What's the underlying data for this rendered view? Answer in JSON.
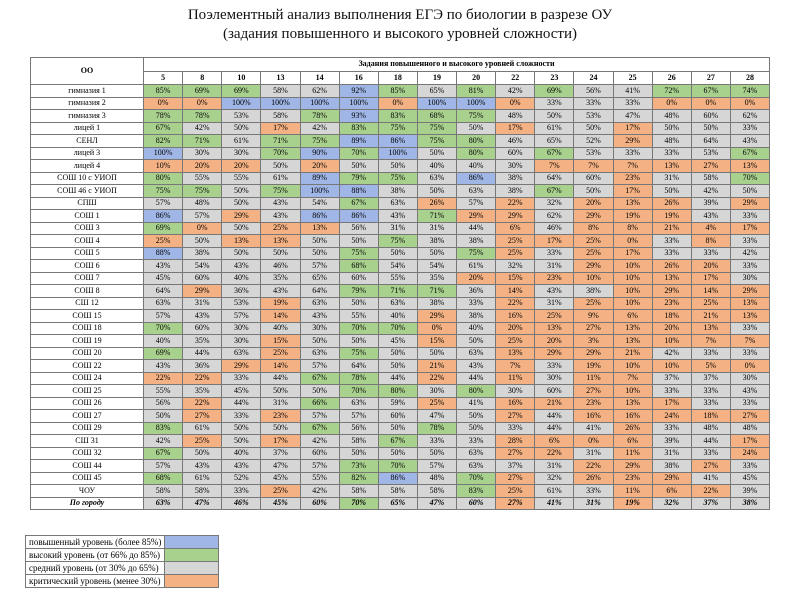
{
  "header": {
    "title": [
      "Поэлементный анализ выполнения ЕГЭ по биологии в разрезе ОУ",
      "(задания повышенного и высокого уровней сложности)"
    ]
  },
  "table": {
    "corner": "ОО",
    "group": "Задания повышенного и высокого уровней сложности",
    "columns": [
      "5",
      "8",
      "10",
      "13",
      "14",
      "16",
      "18",
      "19",
      "20",
      "22",
      "23",
      "24",
      "25",
      "26",
      "27",
      "28"
    ],
    "rows": [
      {
        "name": "гимназия 1",
        "cells": [
          "85%",
          "69%",
          "69%",
          "58%",
          "62%",
          "92%",
          "85%",
          "65%",
          "81%",
          "42%",
          "69%",
          "56%",
          "41%",
          "72%",
          "67%",
          "74%"
        ]
      },
      {
        "name": "гимназия 2",
        "cells": [
          "0%",
          "0%",
          "100%",
          "100%",
          "100%",
          "100%",
          "0%",
          "100%",
          "100%",
          "0%",
          "33%",
          "33%",
          "33%",
          "0%",
          "0%",
          "0%"
        ]
      },
      {
        "name": "гимназия 3",
        "cells": [
          "78%",
          "78%",
          "53%",
          "58%",
          "78%",
          "93%",
          "83%",
          "68%",
          "75%",
          "48%",
          "50%",
          "53%",
          "47%",
          "48%",
          "60%",
          "62%"
        ]
      },
      {
        "name": "лицей 1",
        "cells": [
          "67%",
          "42%",
          "50%",
          "17%",
          "42%",
          "83%",
          "75%",
          "75%",
          "50%",
          "17%",
          "61%",
          "50%",
          "17%",
          "50%",
          "50%",
          "33%"
        ]
      },
      {
        "name": "СЕНЛ",
        "cells": [
          "82%",
          "71%",
          "61%",
          "71%",
          "75%",
          "89%",
          "86%",
          "75%",
          "80%",
          "46%",
          "65%",
          "52%",
          "29%",
          "48%",
          "64%",
          "43%"
        ]
      },
      {
        "name": "лицей 3",
        "cells": [
          "100%",
          "30%",
          "30%",
          "70%",
          "90%",
          "70%",
          "100%",
          "50%",
          "80%",
          "60%",
          "67%",
          "53%",
          "33%",
          "33%",
          "53%",
          "67%"
        ]
      },
      {
        "name": "лицей 4",
        "cells": [
          "10%",
          "20%",
          "20%",
          "50%",
          "20%",
          "50%",
          "50%",
          "40%",
          "40%",
          "30%",
          "7%",
          "7%",
          "7%",
          "13%",
          "27%",
          "13%"
        ]
      },
      {
        "name": "СОШ 10 с УИОП",
        "cells": [
          "80%",
          "55%",
          "55%",
          "61%",
          "89%",
          "79%",
          "75%",
          "63%",
          "86%",
          "38%",
          "64%",
          "60%",
          "23%",
          "31%",
          "58%",
          "70%"
        ]
      },
      {
        "name": "СОШ 46 с УИОП",
        "cells": [
          "75%",
          "75%",
          "50%",
          "75%",
          "100%",
          "88%",
          "38%",
          "50%",
          "63%",
          "38%",
          "67%",
          "50%",
          "17%",
          "50%",
          "42%",
          "50%"
        ]
      },
      {
        "name": "СПШ",
        "cells": [
          "57%",
          "48%",
          "50%",
          "43%",
          "54%",
          "67%",
          "63%",
          "26%",
          "57%",
          "22%",
          "32%",
          "20%",
          "13%",
          "26%",
          "39%",
          "29%"
        ]
      },
      {
        "name": "СОШ 1",
        "cells": [
          "86%",
          "57%",
          "29%",
          "43%",
          "86%",
          "86%",
          "43%",
          "71%",
          "29%",
          "29%",
          "62%",
          "29%",
          "19%",
          "19%",
          "43%",
          "33%"
        ]
      },
      {
        "name": "СОШ 3",
        "cells": [
          "69%",
          "0%",
          "50%",
          "25%",
          "13%",
          "56%",
          "31%",
          "31%",
          "44%",
          "6%",
          "46%",
          "8%",
          "8%",
          "21%",
          "4%",
          "17%"
        ]
      },
      {
        "name": "СОШ 4",
        "cells": [
          "25%",
          "50%",
          "13%",
          "13%",
          "50%",
          "50%",
          "75%",
          "38%",
          "38%",
          "25%",
          "17%",
          "25%",
          "0%",
          "33%",
          "8%",
          "33%"
        ]
      },
      {
        "name": "СОШ 5",
        "cells": [
          "88%",
          "38%",
          "50%",
          "50%",
          "50%",
          "75%",
          "50%",
          "50%",
          "75%",
          "25%",
          "33%",
          "25%",
          "17%",
          "33%",
          "33%",
          "42%"
        ]
      },
      {
        "name": "СОШ 6",
        "cells": [
          "43%",
          "54%",
          "43%",
          "46%",
          "57%",
          "68%",
          "54%",
          "54%",
          "61%",
          "32%",
          "31%",
          "29%",
          "10%",
          "26%",
          "20%",
          "33%"
        ]
      },
      {
        "name": "СОШ 7",
        "cells": [
          "45%",
          "60%",
          "40%",
          "35%",
          "65%",
          "60%",
          "55%",
          "35%",
          "20%",
          "15%",
          "23%",
          "10%",
          "10%",
          "13%",
          "17%",
          "30%"
        ]
      },
      {
        "name": "СОШ 8",
        "cells": [
          "64%",
          "29%",
          "36%",
          "43%",
          "64%",
          "79%",
          "71%",
          "71%",
          "36%",
          "14%",
          "43%",
          "38%",
          "10%",
          "29%",
          "14%",
          "29%"
        ]
      },
      {
        "name": "СШ 12",
        "cells": [
          "63%",
          "31%",
          "53%",
          "19%",
          "63%",
          "50%",
          "63%",
          "38%",
          "33%",
          "22%",
          "31%",
          "25%",
          "10%",
          "23%",
          "25%",
          "13%"
        ]
      },
      {
        "name": "СОШ 15",
        "cells": [
          "57%",
          "43%",
          "57%",
          "14%",
          "43%",
          "55%",
          "40%",
          "29%",
          "38%",
          "16%",
          "25%",
          "9%",
          "6%",
          "18%",
          "21%",
          "13%"
        ]
      },
      {
        "name": "СОШ 18",
        "cells": [
          "70%",
          "60%",
          "30%",
          "40%",
          "30%",
          "70%",
          "70%",
          "0%",
          "40%",
          "20%",
          "13%",
          "27%",
          "13%",
          "20%",
          "13%",
          "33%"
        ]
      },
      {
        "name": "СОШ 19",
        "cells": [
          "40%",
          "35%",
          "30%",
          "15%",
          "50%",
          "50%",
          "45%",
          "15%",
          "50%",
          "25%",
          "20%",
          "3%",
          "13%",
          "10%",
          "7%",
          "7%"
        ]
      },
      {
        "name": "СОШ 20",
        "cells": [
          "69%",
          "44%",
          "63%",
          "25%",
          "63%",
          "75%",
          "50%",
          "50%",
          "63%",
          "13%",
          "29%",
          "29%",
          "21%",
          "42%",
          "33%",
          "33%"
        ]
      },
      {
        "name": "СОШ 22",
        "cells": [
          "43%",
          "36%",
          "29%",
          "14%",
          "57%",
          "64%",
          "50%",
          "21%",
          "43%",
          "7%",
          "33%",
          "19%",
          "10%",
          "10%",
          "5%",
          "0%"
        ]
      },
      {
        "name": "СОШ 24",
        "cells": [
          "22%",
          "22%",
          "33%",
          "44%",
          "67%",
          "78%",
          "44%",
          "22%",
          "44%",
          "11%",
          "30%",
          "11%",
          "7%",
          "37%",
          "37%",
          "30%"
        ]
      },
      {
        "name": "СОШ 25",
        "cells": [
          "55%",
          "35%",
          "45%",
          "50%",
          "50%",
          "70%",
          "80%",
          "30%",
          "80%",
          "30%",
          "60%",
          "27%",
          "10%",
          "33%",
          "33%",
          "43%"
        ]
      },
      {
        "name": "СОШ 26",
        "cells": [
          "56%",
          "22%",
          "44%",
          "31%",
          "66%",
          "63%",
          "59%",
          "25%",
          "41%",
          "16%",
          "21%",
          "23%",
          "13%",
          "17%",
          "33%",
          "33%"
        ]
      },
      {
        "name": "СОШ 27",
        "cells": [
          "50%",
          "27%",
          "33%",
          "23%",
          "57%",
          "57%",
          "60%",
          "47%",
          "50%",
          "27%",
          "44%",
          "16%",
          "16%",
          "24%",
          "18%",
          "27%"
        ]
      },
      {
        "name": "СОШ 29",
        "cells": [
          "83%",
          "61%",
          "50%",
          "50%",
          "67%",
          "56%",
          "50%",
          "78%",
          "50%",
          "33%",
          "44%",
          "41%",
          "26%",
          "33%",
          "48%",
          "48%"
        ]
      },
      {
        "name": "СШ 31",
        "cells": [
          "42%",
          "25%",
          "50%",
          "17%",
          "42%",
          "58%",
          "67%",
          "33%",
          "33%",
          "28%",
          "6%",
          "0%",
          "6%",
          "39%",
          "44%",
          "17%"
        ]
      },
      {
        "name": "СОШ 32",
        "cells": [
          "67%",
          "50%",
          "40%",
          "37%",
          "60%",
          "50%",
          "50%",
          "50%",
          "63%",
          "27%",
          "22%",
          "31%",
          "11%",
          "31%",
          "33%",
          "24%"
        ]
      },
      {
        "name": "СОШ 44",
        "cells": [
          "57%",
          "43%",
          "43%",
          "47%",
          "57%",
          "73%",
          "70%",
          "57%",
          "63%",
          "37%",
          "31%",
          "22%",
          "29%",
          "38%",
          "27%",
          "33%"
        ]
      },
      {
        "name": "СОШ 45",
        "cells": [
          "68%",
          "61%",
          "52%",
          "45%",
          "55%",
          "82%",
          "86%",
          "48%",
          "70%",
          "27%",
          "32%",
          "26%",
          "23%",
          "29%",
          "41%",
          "45%"
        ]
      },
      {
        "name": "ЧОУ",
        "cells": [
          "58%",
          "58%",
          "33%",
          "25%",
          "42%",
          "58%",
          "58%",
          "58%",
          "83%",
          "25%",
          "61%",
          "33%",
          "11%",
          "6%",
          "22%",
          "39%"
        ]
      },
      {
        "name": "По городу",
        "cells": [
          "63%",
          "47%",
          "46%",
          "45%",
          "60%",
          "70%",
          "65%",
          "47%",
          "60%",
          "27%",
          "41%",
          "31%",
          "19%",
          "32%",
          "37%",
          "38%"
        ]
      }
    ]
  },
  "legend": [
    {
      "label": "повышенный уровень (более 85%)",
      "color": "#9fb6e6",
      "min": 85
    },
    {
      "label": "высокий уровень (от 66% до 85%)",
      "color": "#a9d18e",
      "min": 66
    },
    {
      "label": "средний уровень (от 30% до 65%)",
      "color": "#d6d6d6",
      "min": 30
    },
    {
      "label": "критический уровень (менее 30%)",
      "color": "#f4b183"
    }
  ]
}
